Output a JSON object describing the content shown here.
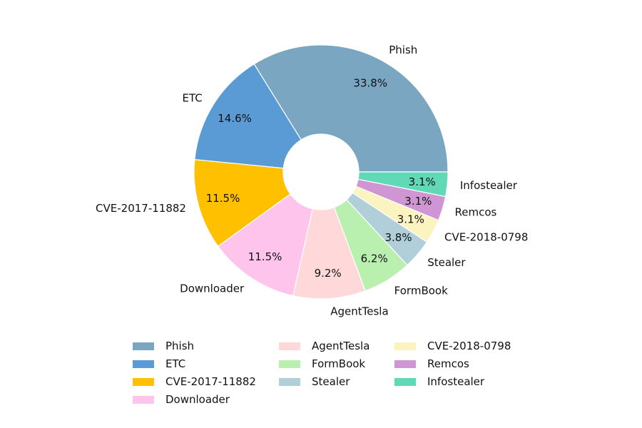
{
  "chart_data": {
    "type": "pie",
    "donut": true,
    "start_angle_deg": 0,
    "direction": "counterclockwise",
    "slices": [
      {
        "label": "Phish",
        "value": 33.8,
        "pct_label": "33.8%",
        "color": "#7aa6c2"
      },
      {
        "label": "ETC",
        "value": 14.6,
        "pct_label": "14.6%",
        "color": "#5b9bd5"
      },
      {
        "label": "CVE-2017-11882",
        "value": 11.5,
        "pct_label": "11.5%",
        "color": "#ffc000"
      },
      {
        "label": "Downloader",
        "value": 11.5,
        "pct_label": "11.5%",
        "color": "#ffc4ec"
      },
      {
        "label": "AgentTesla",
        "value": 9.2,
        "pct_label": "9.2%",
        "color": "#ffd9d9"
      },
      {
        "label": "FormBook",
        "value": 6.2,
        "pct_label": "6.2%",
        "color": "#b9f0b0"
      },
      {
        "label": "Stealer",
        "value": 3.8,
        "pct_label": "3.8%",
        "color": "#b0cfd8"
      },
      {
        "label": "CVE-2018-0798",
        "value": 3.1,
        "pct_label": "3.1%",
        "color": "#fbf4c0"
      },
      {
        "label": "Remcos",
        "value": 3.1,
        "pct_label": "3.1%",
        "color": "#d096d3"
      },
      {
        "label": "Infostealer",
        "value": 3.1,
        "pct_label": "3.1%",
        "color": "#62d9b6"
      }
    ],
    "legend": {
      "placement": "bottom-center",
      "columns": 3,
      "entries": [
        "Phish",
        "ETC",
        "CVE-2017-11882",
        "Downloader",
        "AgentTesla",
        "FormBook",
        "Stealer",
        "CVE-2018-0798",
        "Remcos",
        "Infostealer"
      ]
    }
  }
}
